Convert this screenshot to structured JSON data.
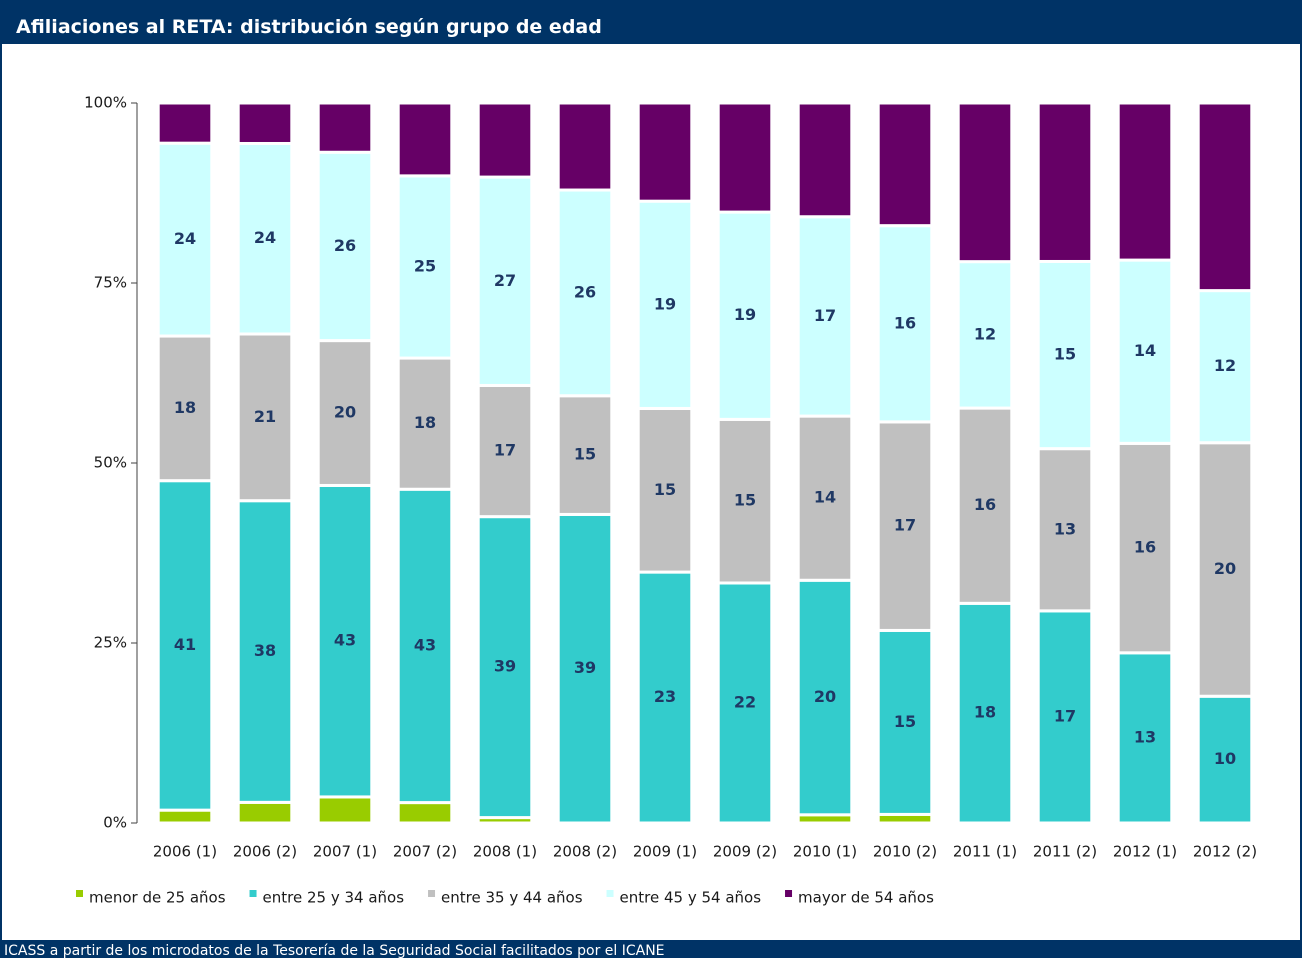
{
  "chart_data": {
    "type": "bar",
    "stacked": "percent",
    "title": "Afiliaciones al RETA: distribución según grupo de edad",
    "source": "ICASS a partir de los microdatos de la Tesorería de la Seguridad Social facilitados por el ICANE",
    "categories": [
      "2006 (1)",
      "2006 (2)",
      "2007 (1)",
      "2007 (2)",
      "2008 (1)",
      "2008 (2)",
      "2009 (1)",
      "2009 (2)",
      "2010 (1)",
      "2010 (2)",
      "2011 (1)",
      "2011 (2)",
      "2012 (1)",
      "2012 (2)"
    ],
    "series": [
      {
        "name": "menor de 25 años",
        "color": "#99cc00",
        "values": [
          1.6,
          2.6,
          3.6,
          2.8,
          0.7,
          0,
          0,
          0,
          0.7,
          0.7,
          0,
          0,
          0,
          0
        ]
      },
      {
        "name": "entre 25 y 34 años",
        "color": "#33cccc",
        "values": [
          41,
          38,
          43,
          43,
          39,
          39,
          23,
          22,
          20,
          15,
          18,
          17,
          13,
          10
        ],
        "labels": true
      },
      {
        "name": "entre 35 y 44 años",
        "color": "#c0c0c0",
        "values": [
          18,
          21,
          20,
          18,
          17,
          15,
          15,
          15,
          14,
          17,
          16,
          13,
          16,
          20
        ],
        "labels": true
      },
      {
        "name": "entre 45 y 54 años",
        "color": "#ccffff",
        "values": [
          24,
          24,
          26,
          25,
          27,
          26,
          19,
          19,
          17,
          16,
          12,
          15,
          14,
          12
        ],
        "labels": true
      },
      {
        "name": "mayor de 54 años",
        "color": "#660066",
        "values": [
          5,
          5.1,
          6.8,
          10,
          9.6,
          11,
          9,
          10,
          9.7,
          10,
          13,
          12.7,
          12,
          14.8
        ]
      }
    ],
    "ylim": [
      0,
      100
    ],
    "yticks": [
      {
        "value": 0,
        "label": "0%"
      },
      {
        "value": 25,
        "label": "25%"
      },
      {
        "value": 50,
        "label": "50%"
      },
      {
        "value": 75,
        "label": "75%"
      },
      {
        "value": 100,
        "label": "100%"
      }
    ],
    "legend": "bottom"
  }
}
